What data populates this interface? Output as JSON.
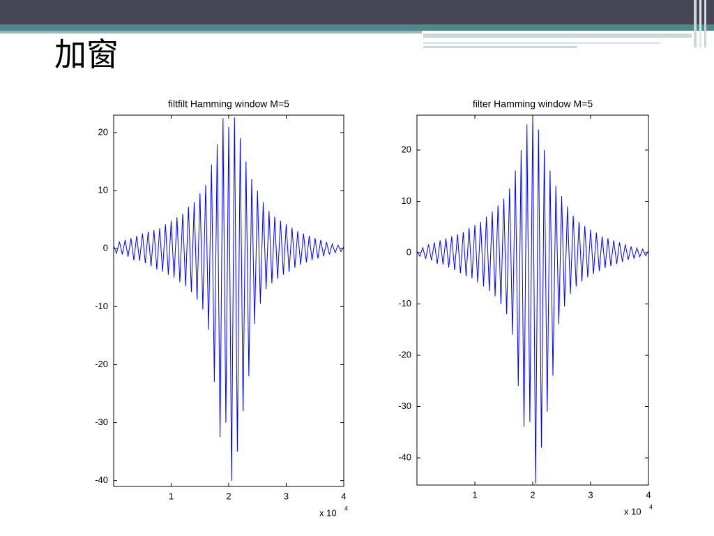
{
  "title": "加窗",
  "chart_data": [
    {
      "type": "line",
      "title": "filtfilt Hamming window M=5",
      "color": "#0000ff",
      "x": [
        0,
        500,
        1000,
        1500,
        2000,
        2500,
        3000,
        3500,
        4000,
        4500,
        5000,
        5500,
        6000,
        6500,
        7000,
        7500,
        8000,
        8500,
        9000,
        9500,
        10000,
        10500,
        11000,
        11500,
        12000,
        12500,
        13000,
        13500,
        14000,
        14500,
        15000,
        15500,
        16000,
        16500,
        17000,
        17500,
        18000,
        18500,
        19000,
        19500,
        20000,
        20500,
        21000,
        21500,
        22000,
        22500,
        23000,
        23500,
        24000,
        24500,
        25000,
        25500,
        26000,
        26500,
        27000,
        27500,
        28000,
        28500,
        29000,
        29500,
        30000,
        30500,
        31000,
        31500,
        32000,
        32500,
        33000,
        33500,
        34000,
        34500,
        35000,
        35500,
        36000,
        36500,
        37000,
        37500,
        38000,
        38500,
        39000,
        39500,
        40000
      ],
      "values": [
        0.5,
        -0.8,
        1.2,
        -1.0,
        1.5,
        -1.4,
        1.8,
        -2.0,
        2.2,
        -2.1,
        2.6,
        -2.5,
        2.9,
        -3.0,
        3.2,
        -3.6,
        3.5,
        -4.0,
        4.2,
        -4.5,
        4.8,
        -5.0,
        5.4,
        -5.8,
        6.0,
        -6.5,
        7.2,
        -7.5,
        8.0,
        -8.8,
        9.5,
        -10.5,
        11.0,
        -14.0,
        14.5,
        -23.0,
        18.0,
        -32.5,
        22.5,
        -30.0,
        21.0,
        -40.0,
        22.6,
        -35.0,
        19.0,
        -28.0,
        15.0,
        -22.0,
        12.0,
        -13.0,
        10.0,
        -9.5,
        8.0,
        -7.0,
        6.5,
        -6.0,
        5.5,
        -5.2,
        4.8,
        -4.5,
        4.2,
        -4.0,
        3.6,
        -3.3,
        3.0,
        -2.8,
        2.6,
        -2.4,
        2.2,
        -2.0,
        1.8,
        -1.7,
        1.5,
        -1.3,
        1.1,
        -1.0,
        0.8,
        -0.7,
        0.6,
        -0.5,
        0.3
      ],
      "xlim": [
        0,
        40000
      ],
      "xticks": [
        {
          "value": 10000,
          "label": "1"
        },
        {
          "value": 20000,
          "label": "2"
        },
        {
          "value": 30000,
          "label": "3"
        },
        {
          "value": 40000,
          "label": "4"
        }
      ],
      "x_multiplier": {
        "base": "x 10",
        "exponent": "4"
      },
      "ylim": [
        -41,
        23
      ],
      "yticks": [
        -40,
        -30,
        -20,
        -10,
        0,
        10,
        20
      ]
    },
    {
      "type": "line",
      "title": "filter Hamming window M=5",
      "color": "#0000ff",
      "x": [
        0,
        500,
        1000,
        1500,
        2000,
        2500,
        3000,
        3500,
        4000,
        4500,
        5000,
        5500,
        6000,
        6500,
        7000,
        7500,
        8000,
        8500,
        9000,
        9500,
        10000,
        10500,
        11000,
        11500,
        12000,
        12500,
        13000,
        13500,
        14000,
        14500,
        15000,
        15500,
        16000,
        16500,
        17000,
        17500,
        18000,
        18500,
        19000,
        19500,
        20000,
        20500,
        21000,
        21500,
        22000,
        22500,
        23000,
        23500,
        24000,
        24500,
        25000,
        25500,
        26000,
        26500,
        27000,
        27500,
        28000,
        28500,
        29000,
        29500,
        30000,
        30500,
        31000,
        31500,
        32000,
        32500,
        33000,
        33500,
        34000,
        34500,
        35000,
        35500,
        36000,
        36500,
        37000,
        37500,
        38000,
        38500,
        39000,
        39500,
        40000
      ],
      "values": [
        0.3,
        -0.7,
        1.0,
        -1.2,
        1.6,
        -1.5,
        2.0,
        -2.2,
        2.4,
        -2.3,
        2.8,
        -2.9,
        3.2,
        -3.4,
        3.6,
        -4.0,
        4.0,
        -4.6,
        4.8,
        -5.0,
        5.4,
        -5.8,
        6.0,
        -6.6,
        7.0,
        -7.5,
        8.0,
        -8.5,
        9.2,
        -10.0,
        10.5,
        -12.0,
        12.5,
        -16.0,
        16.0,
        -26.0,
        20.0,
        -34.0,
        25.0,
        -33.0,
        26.5,
        -45.0,
        24.0,
        -38.0,
        20.0,
        -31.0,
        16.0,
        -24.0,
        13.0,
        -14.0,
        11.0,
        -10.5,
        9.0,
        -8.0,
        7.2,
        -6.6,
        6.0,
        -5.6,
        5.2,
        -4.8,
        4.5,
        -4.2,
        3.9,
        -3.6,
        3.2,
        -3.0,
        2.8,
        -2.6,
        2.4,
        -2.2,
        2.0,
        -1.8,
        1.6,
        -1.4,
        1.2,
        -1.1,
        0.9,
        -0.8,
        0.7,
        -0.6,
        0.4
      ],
      "xlim": [
        0,
        40000
      ],
      "xticks": [
        {
          "value": 10000,
          "label": "1"
        },
        {
          "value": 20000,
          "label": "2"
        },
        {
          "value": 30000,
          "label": "3"
        },
        {
          "value": 40000,
          "label": "4"
        }
      ],
      "x_multiplier": {
        "base": "x 10",
        "exponent": "4"
      },
      "ylim": [
        -45.3,
        26.8
      ],
      "yticks": [
        -40,
        -30,
        -20,
        -10,
        0,
        10,
        20
      ]
    }
  ]
}
